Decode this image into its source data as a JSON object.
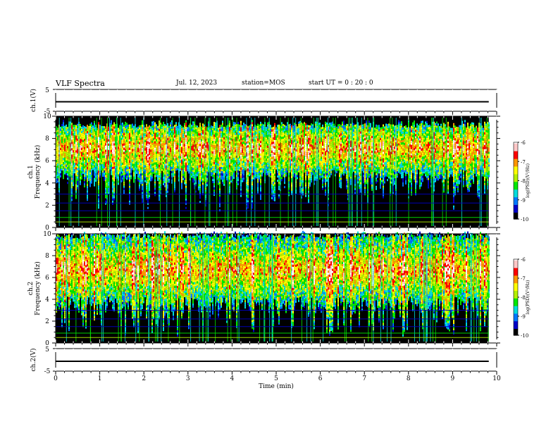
{
  "header": {
    "title": "VLF Spectra",
    "date": "Jul. 12, 2023",
    "station": "station=MOS",
    "start": "start UT =  0 : 20 : 0"
  },
  "colors": {
    "colormap": [
      "#000000",
      "#0000c8",
      "#0078ff",
      "#00dcdc",
      "#00e800",
      "#b4f000",
      "#ffff00",
      "#ff9600",
      "#ff0000",
      "#ffc8c8",
      "#ffffff"
    ],
    "waveform": "#000000"
  },
  "chart_data": [
    {
      "type": "line",
      "panel": "ch1-waveform",
      "ylabel": "ch.1(V)",
      "ylim": [
        -5,
        5
      ],
      "yticks": [
        "5",
        "-5"
      ],
      "series": [
        {
          "x": [
            0,
            9.82
          ],
          "y": [
            0,
            0
          ]
        }
      ]
    },
    {
      "type": "heatmap",
      "panel": "ch1-spectrogram",
      "ylabel": "ch.1 Frequency (kHz)",
      "xlim": [
        0,
        10
      ],
      "ylim": [
        0,
        10
      ],
      "yticks": [
        "0",
        "2",
        "4",
        "6",
        "8",
        "10"
      ],
      "data_end_min": 9.82,
      "emission_band_khz": [
        4.5,
        9.2
      ],
      "emission_peak_khz": 7.0,
      "colorbar": {
        "label": "log(PSD)(V²/Hz)",
        "range": [
          -10,
          -6
        ],
        "ticks": [
          "-6",
          "-7",
          "-8",
          "-9",
          "-10"
        ]
      }
    },
    {
      "type": "heatmap",
      "panel": "ch2-spectrogram",
      "ylabel": "ch.2 Frequency (kHz)",
      "xlim": [
        0,
        10
      ],
      "ylim": [
        0,
        10
      ],
      "yticks": [
        "0",
        "2",
        "4",
        "6",
        "8",
        "10"
      ],
      "data_end_min": 9.82,
      "emission_band_khz": [
        3.5,
        9.8
      ],
      "emission_peak_khz": 6.6,
      "colorbar": {
        "label": "log(PSD)(V²/Hz)",
        "range": [
          -10,
          -6
        ],
        "ticks": [
          "-6",
          "-7",
          "-8",
          "-9",
          "-10"
        ]
      }
    },
    {
      "type": "line",
      "panel": "ch2-waveform",
      "ylabel": "ch.2(V)",
      "ylim": [
        -5,
        5
      ],
      "yticks": [
        "5",
        "-5"
      ],
      "xlabel": "Time (min)",
      "xlim": [
        0,
        10
      ],
      "xticks": [
        "0",
        "1",
        "2",
        "3",
        "4",
        "5",
        "6",
        "7",
        "8",
        "9",
        "10"
      ],
      "series": [
        {
          "x": [
            0,
            9.82
          ],
          "y": [
            0,
            0
          ]
        }
      ]
    }
  ]
}
